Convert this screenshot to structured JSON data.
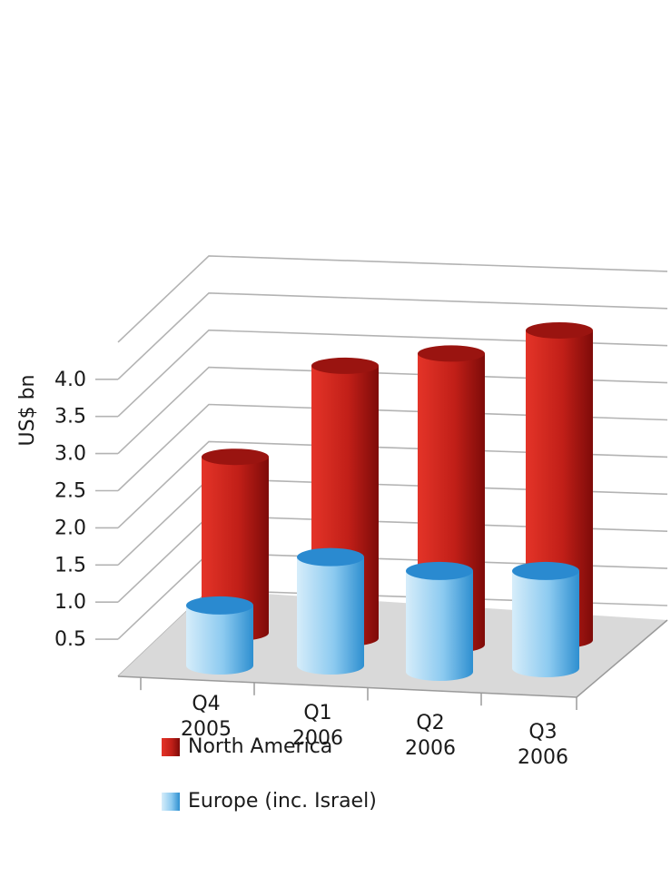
{
  "chart_data": {
    "type": "bar",
    "ylabel": "US$ bn",
    "yticks": [
      "0.5",
      "1.0",
      "1.5",
      "2.0",
      "2.5",
      "3.0",
      "3.5",
      "4.0"
    ],
    "ylim": [
      0,
      4.0
    ],
    "categories": [
      {
        "line1": "Q4",
        "line2": "2005"
      },
      {
        "line1": "Q1",
        "line2": "2006"
      },
      {
        "line1": "Q2",
        "line2": "2006"
      },
      {
        "line1": "Q3",
        "line2": "2006"
      }
    ],
    "series": [
      {
        "name": "North America",
        "values": [
          2.1,
          3.4,
          3.65,
          3.9
        ]
      },
      {
        "name": "Europe (inc. Israel)",
        "values": [
          0.65,
          1.3,
          1.2,
          1.15
        ]
      }
    ],
    "colors": {
      "north_america": [
        "#e43428",
        "#c11f18",
        "#7e0b09"
      ],
      "north_america_top": "#9a1410",
      "europe": [
        "#d6edfa",
        "#8ccaf0",
        "#2e8fd0"
      ],
      "europe_top": "#2a8ad0",
      "floor": "#d9d9d9",
      "grid": "#b3b3b3"
    },
    "legend": [
      "North America",
      "Europe (inc. Israel)"
    ],
    "grid": true,
    "legend_position": "bottom"
  }
}
